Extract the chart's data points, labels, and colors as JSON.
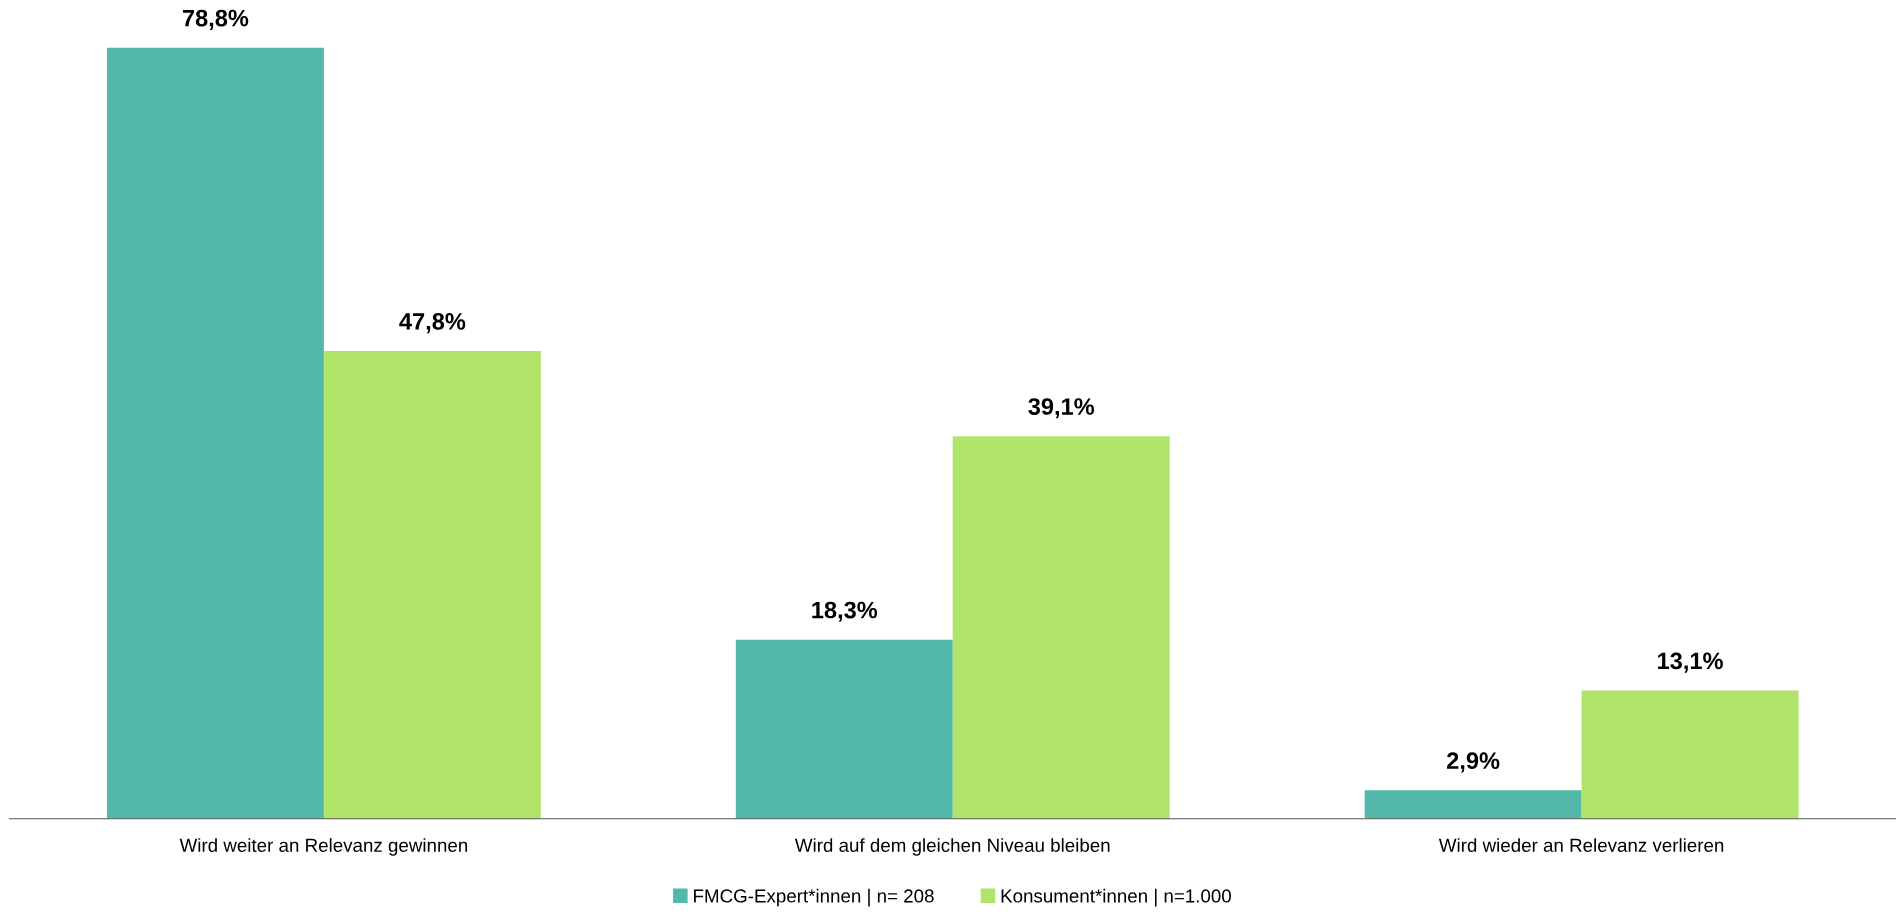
{
  "chart_data": {
    "type": "bar",
    "categories": [
      "Wird weiter an Relevanz gewinnen",
      "Wird auf dem gleichen Niveau bleiben",
      "Wird wieder an Relevanz verlieren"
    ],
    "series": [
      {
        "name": "FMCG-Expert*innen | n= 208",
        "color": "#52b9aa",
        "values": [
          78.8,
          18.3,
          2.9
        ],
        "value_labels": [
          "78,8%",
          "18,3%",
          "2,9%"
        ]
      },
      {
        "name": "Konsument*innen | n=1.000",
        "color": "#b1e46a",
        "values": [
          47.8,
          39.1,
          13.1
        ],
        "value_labels": [
          "47,8%",
          "39,1%",
          "13,1%"
        ]
      }
    ],
    "legend": "bottom",
    "tick_labels": "x"
  }
}
